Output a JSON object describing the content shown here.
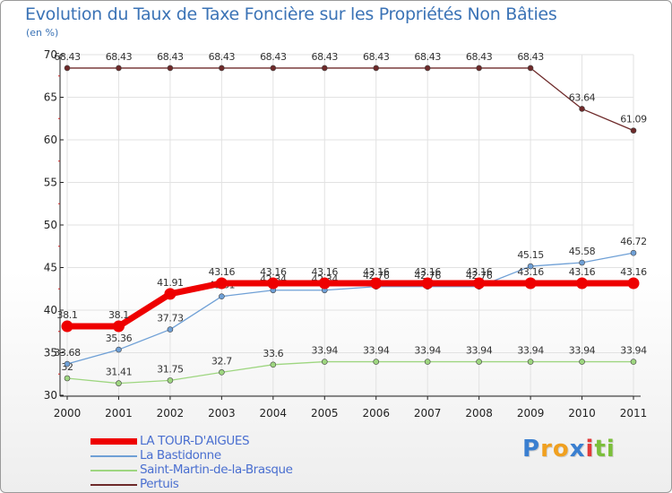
{
  "chart_data": {
    "type": "line",
    "title": "Evolution du Taux de Taxe Foncière sur les Propriétés Non Bâties",
    "subtitle": "(en %)",
    "categories": [
      "2000",
      "2001",
      "2002",
      "2003",
      "2004",
      "2005",
      "2006",
      "2007",
      "2008",
      "2009",
      "2010",
      "2011"
    ],
    "ylim": [
      30,
      70
    ],
    "yticks": [
      30,
      35,
      40,
      45,
      50,
      55,
      60,
      65,
      70
    ],
    "series": [
      {
        "name": "Pertuis",
        "color": "#6e2a2a",
        "values": [
          68.43,
          68.43,
          68.43,
          68.43,
          68.43,
          68.43,
          68.43,
          68.43,
          68.43,
          68.43,
          63.64,
          61.09
        ],
        "labels": [
          "68.43",
          "68.43",
          "68.43",
          "68.43",
          "68.43",
          "68.43",
          "68.43",
          "68.43",
          "68.43",
          "68.43",
          "63.64",
          "61.09"
        ]
      },
      {
        "name": "Saint-Martin-de-la-Brasque",
        "color": "#9ed680",
        "values": [
          32,
          31.41,
          31.75,
          32.7,
          33.6,
          33.94,
          33.94,
          33.94,
          33.94,
          33.94,
          33.94,
          33.94
        ],
        "labels": [
          "32",
          "31.41",
          "31.75",
          "32.7",
          "33.6",
          "33.94",
          "33.94",
          "33.94",
          "33.94",
          "33.94",
          "33.94",
          "33.94"
        ]
      },
      {
        "name": "La Bastidonne",
        "color": "#6fa0d6",
        "values": [
          33.68,
          35.36,
          37.73,
          41.61,
          42.34,
          42.34,
          42.76,
          42.76,
          42.76,
          45.15,
          45.58,
          46.72
        ],
        "labels": [
          "33.68",
          "35.36",
          "37.73",
          "41.61",
          "42.34",
          "42.34",
          "42.76",
          "42.76",
          "42.76",
          "45.15",
          "45.58",
          "46.72"
        ]
      },
      {
        "name": "LA TOUR-D'AIGUES",
        "color": "#ee0000",
        "values": [
          38.1,
          38.1,
          41.91,
          43.16,
          43.16,
          43.16,
          43.16,
          43.16,
          43.16,
          43.16,
          43.16,
          43.16
        ],
        "labels": [
          "38.1",
          "38.1",
          "41.91",
          "43.16",
          "43.16",
          "43.16",
          "43.16",
          "43.16",
          "43.16",
          "43.16",
          "43.16",
          "43.16"
        ]
      }
    ]
  },
  "legend": [
    {
      "label": "LA TOUR-D'AIGUES",
      "color": "#ee0000"
    },
    {
      "label": "La Bastidonne",
      "color": "#6fa0d6"
    },
    {
      "label": "Saint-Martin-de-la-Brasque",
      "color": "#9ed680"
    },
    {
      "label": "Pertuis",
      "color": "#6e2a2a"
    }
  ],
  "logo": {
    "letters": [
      "P",
      "r",
      "o",
      "x",
      "i",
      "t",
      "i"
    ],
    "colors": [
      "#3a7fd0",
      "#f0a020",
      "#f0a020",
      "#3a7fd0",
      "#e23a3a",
      "#7bbf3a",
      "#7bbf3a"
    ]
  }
}
